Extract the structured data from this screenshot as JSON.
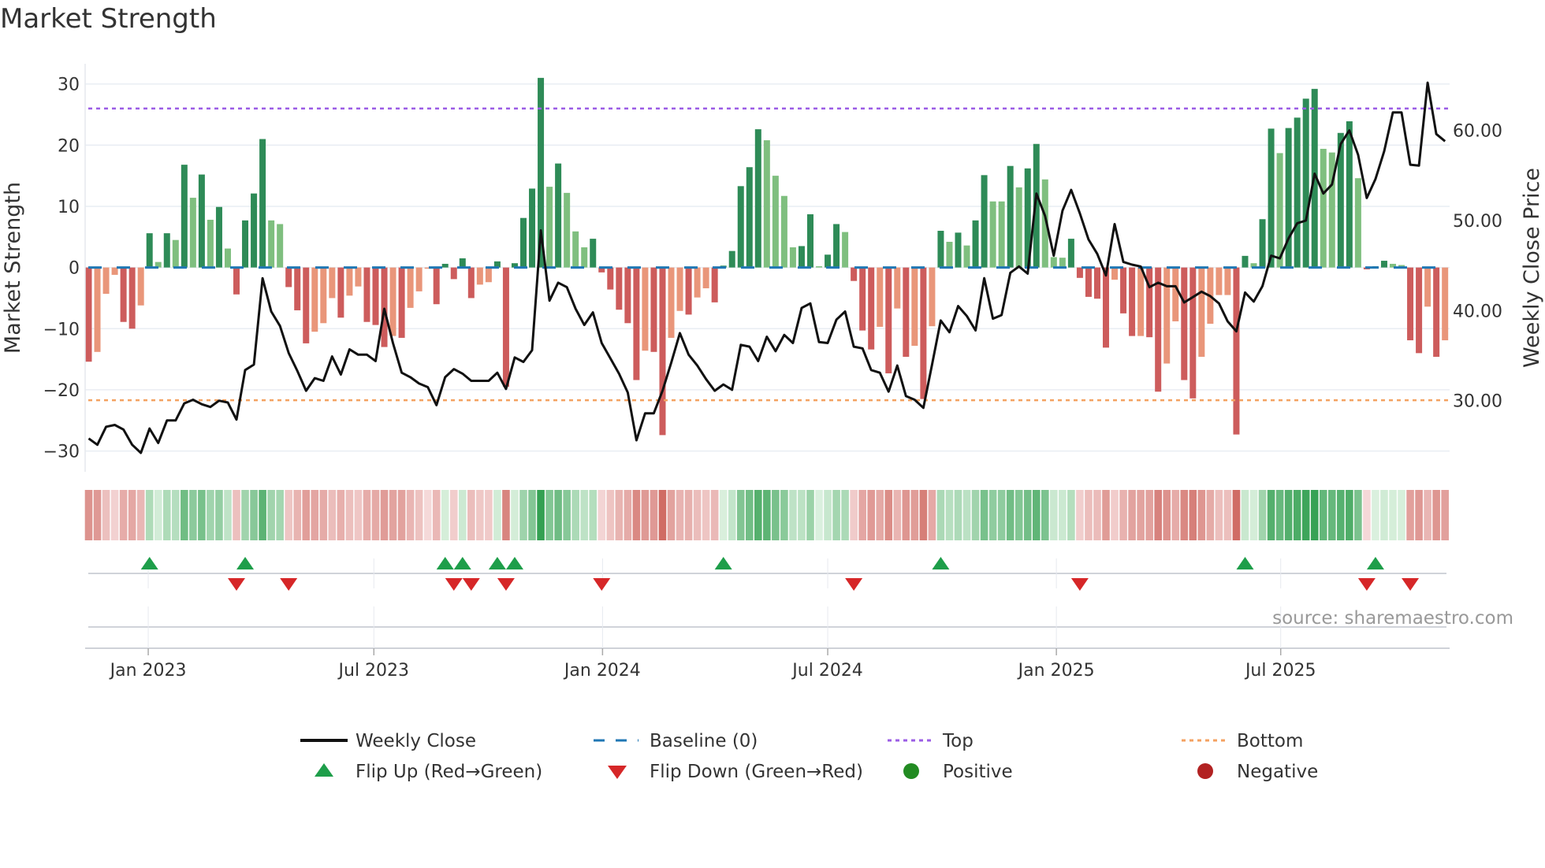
{
  "title": "Market Strength",
  "source": "source: sharemaestro.com",
  "legend": {
    "weekly_close": "Weekly Close",
    "baseline": "Baseline (0)",
    "top": "Top",
    "bottom": "Bottom",
    "flip_up": "Flip Up (Red→Green)",
    "flip_down": "Flip Down (Green→Red)",
    "positive": "Positive",
    "negative": "Negative"
  },
  "colors": {
    "pos_strong": "#2e8b57",
    "pos_weak": "#7fbf7f",
    "neg_strong": "#cd5c5c",
    "neg_weak": "#e9967a",
    "close": "#111111",
    "baseline": "#1f77b4",
    "top": "#9b5de5",
    "bottom": "#f4a261",
    "flip_up": "#1e9e4a",
    "flip_down": "#d62728",
    "positive": "#228b22",
    "negative": "#b22222"
  },
  "chart_data": {
    "type": "bar",
    "title": "Market Strength",
    "ylabel": "Market Strength",
    "y2label": "Weekly Close Price",
    "ylim": [
      -33.4,
      33.3
    ],
    "y2lim": [
      22.1,
      67.4
    ],
    "y_ticks": [
      -30,
      -20,
      -10,
      0,
      10,
      20,
      30
    ],
    "y_tick_labels": [
      "−30",
      "−20",
      "−10",
      "0",
      "10",
      "20",
      "30"
    ],
    "y2_ticks": [
      30,
      40,
      50,
      60
    ],
    "y2_tick_labels": [
      "30.00",
      "40.00",
      "50.00",
      "60.00"
    ],
    "x_ticks": [
      {
        "label": "Jan 2023",
        "week": 6.85
      },
      {
        "label": "Jul 2023",
        "week": 32.8
      },
      {
        "label": "Jan 2024",
        "week": 59.1
      },
      {
        "label": "Jul 2024",
        "week": 85.0
      },
      {
        "label": "Jan 2025",
        "week": 111.3
      },
      {
        "label": "Jul 2025",
        "week": 137.1
      }
    ],
    "top_level": 26,
    "bottom_level": -21.7,
    "baseline": 0,
    "strength": [
      -15.4,
      -13.8,
      -4.3,
      -1.2,
      -8.9,
      -10,
      -6.2,
      5.6,
      0.9,
      5.6,
      4.5,
      16.8,
      11.4,
      15.2,
      7.8,
      9.9,
      3.1,
      -4.4,
      7.7,
      12.1,
      21,
      7.7,
      7.1,
      -3.2,
      -7,
      -12.4,
      -10.5,
      -9.1,
      -5,
      -8.2,
      -4.6,
      -3.1,
      -8.9,
      -9.4,
      -13,
      -11.2,
      -11.5,
      -6.6,
      -3.9,
      -0.2,
      -6,
      0.6,
      -1.9,
      1.5,
      -5,
      -2.8,
      -2.4,
      1,
      -19.5,
      0.7,
      8.1,
      12.9,
      31,
      13.2,
      17,
      12.2,
      5.9,
      3.3,
      4.7,
      -0.8,
      -3.6,
      -6.9,
      -9.1,
      -18.4,
      -13.6,
      -13.8,
      -27.4,
      -11.5,
      -7.1,
      -7.7,
      -4.9,
      -3.4,
      -5.7,
      0.3,
      2.7,
      13.3,
      16.4,
      22.6,
      20.8,
      15,
      11.7,
      3.3,
      3.5,
      8.7,
      0.2,
      2.1,
      7.1,
      5.8,
      -2.2,
      -10.3,
      -13.4,
      -9.7,
      -17.3,
      -6.7,
      -14.6,
      -12.8,
      -21.5,
      -9.6,
      6,
      4.2,
      5.7,
      3.6,
      7.7,
      15.1,
      10.8,
      10.8,
      16.6,
      13.1,
      16.2,
      20.2,
      14.4,
      1.7,
      1.6,
      4.7,
      -1.7,
      -4.8,
      -5.1,
      -13.1,
      -2,
      -7.5,
      -11.2,
      -11.2,
      -11.4,
      -20.3,
      -15.7,
      -8.8,
      -18.4,
      -21.4,
      -14.6,
      -9.2,
      -4.5,
      -4.5,
      -27.3,
      1.9,
      0.7,
      7.9,
      22.7,
      18.7,
      22.8,
      24.5,
      27.6,
      29.2,
      19.4,
      18.8,
      22,
      23.9,
      14.6,
      -0.3,
      0.2,
      1.1,
      0.6,
      0.4,
      -11.9,
      -14,
      -6.4,
      -14.6,
      -11.9
    ],
    "close": [
      25.8,
      25.1,
      27.1,
      27.3,
      26.8,
      25.1,
      24.2,
      26.9,
      25.3,
      27.8,
      27.8,
      29.7,
      30.1,
      29.6,
      29.3,
      30,
      29.8,
      27.9,
      33.4,
      34,
      43.6,
      39.9,
      38.3,
      35.3,
      33.3,
      31.1,
      32.5,
      32.2,
      34.9,
      32.9,
      35.7,
      35.1,
      35.1,
      34.4,
      40.2,
      36.4,
      33.1,
      32.6,
      31.9,
      31.5,
      29.5,
      32.6,
      33.5,
      33,
      32.2,
      32.2,
      32.2,
      33.1,
      31.3,
      34.8,
      34.3,
      35.6,
      48.9,
      41.1,
      43.1,
      42.6,
      40.2,
      38.4,
      39.8,
      36.4,
      34.7,
      33,
      30.9,
      25.6,
      28.6,
      28.6,
      31.1,
      34.2,
      37.5,
      35.1,
      33.9,
      32.4,
      31.1,
      31.8,
      31.2,
      36.2,
      36,
      34.4,
      37.1,
      35.5,
      37.3,
      36.4,
      40.3,
      40.8,
      36.5,
      36.4,
      39,
      39.9,
      36,
      35.8,
      33.4,
      33.1,
      31,
      33.9,
      30.5,
      30.1,
      29.2,
      34,
      38.9,
      37.6,
      40.5,
      39.4,
      37.8,
      43.6,
      39.1,
      39.5,
      44.2,
      44.9,
      44.1,
      53,
      50.5,
      46.1,
      51.1,
      53.4,
      50.8,
      47.9,
      46.3,
      43.9,
      49.6,
      45.4,
      45.1,
      44.9,
      42.6,
      43.1,
      42.7,
      42.7,
      40.9,
      41.5,
      42.1,
      41.6,
      40.8,
      38.8,
      37.7,
      42,
      41,
      42.7,
      46.1,
      45.8,
      48,
      49.7,
      50,
      55.2,
      53,
      54,
      58.5,
      60,
      57.3,
      52.5,
      54.6,
      57.7,
      62,
      62,
      56.2,
      56.1,
      65.3,
      59.6,
      58.8
    ],
    "flip_up_weeks": [
      7,
      18,
      41,
      43,
      47,
      49,
      73,
      98,
      133,
      148
    ],
    "flip_down_weeks": [
      17,
      23,
      42,
      44,
      48,
      59,
      88,
      114,
      147,
      152
    ],
    "legend_position": "bottom"
  }
}
